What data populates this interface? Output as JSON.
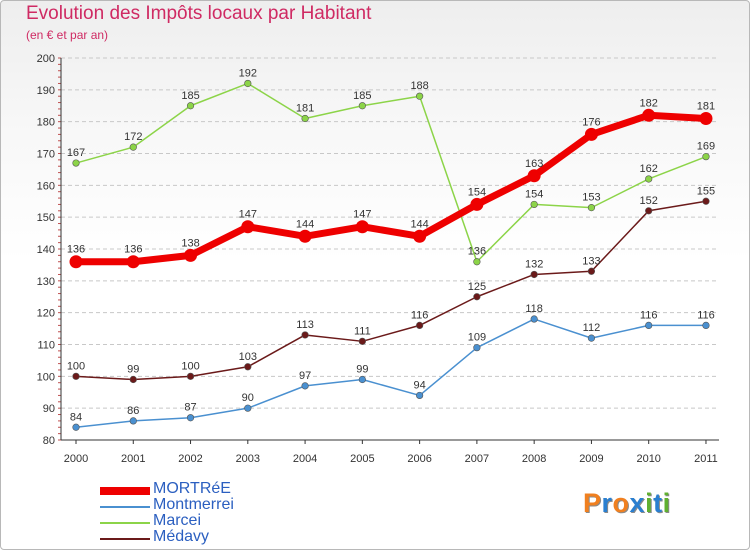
{
  "header": {
    "title": "Evolution des Impôts locaux par Habitant",
    "subtitle": "(en € et par an)"
  },
  "chart_data": {
    "type": "line",
    "title": "Evolution des Impôts locaux par Habitant",
    "subtitle": "(en € et par an)",
    "xlabel": "",
    "ylabel": "",
    "ylim": [
      80,
      200
    ],
    "yticks": [
      80,
      90,
      100,
      110,
      120,
      130,
      140,
      150,
      160,
      170,
      180,
      190,
      200
    ],
    "x": [
      "2000",
      "2001",
      "2002",
      "2003",
      "2004",
      "2005",
      "2006",
      "2007",
      "2008",
      "2009",
      "2010",
      "2011"
    ],
    "grid": "horizontal dashed",
    "legend_position": "bottom-left",
    "series": [
      {
        "name": "MORTRéE",
        "color": "#ee0000",
        "values": [
          136,
          136,
          138,
          147,
          144,
          147,
          144,
          154,
          163,
          176,
          182,
          181
        ]
      },
      {
        "name": "Montmerrei",
        "color": "#4a90d0",
        "values": [
          84,
          86,
          87,
          90,
          97,
          99,
          94,
          109,
          118,
          112,
          116,
          116
        ]
      },
      {
        "name": "Marcei",
        "color": "#8cd448",
        "values": [
          167,
          172,
          185,
          192,
          181,
          185,
          188,
          136,
          154,
          153,
          162,
          169
        ]
      },
      {
        "name": "Médavy",
        "color": "#6b1a1a",
        "values": [
          100,
          99,
          100,
          103,
          113,
          111,
          116,
          125,
          132,
          133,
          152,
          155
        ]
      }
    ]
  },
  "logo": {
    "letters": [
      "P",
      "r",
      "o",
      "x",
      "i",
      "t",
      "i"
    ],
    "colors": [
      "#f08020",
      "#2a7fd0",
      "#f08020",
      "#2a7fd0",
      "#60b030",
      "#2a7fd0",
      "#60b030"
    ]
  }
}
